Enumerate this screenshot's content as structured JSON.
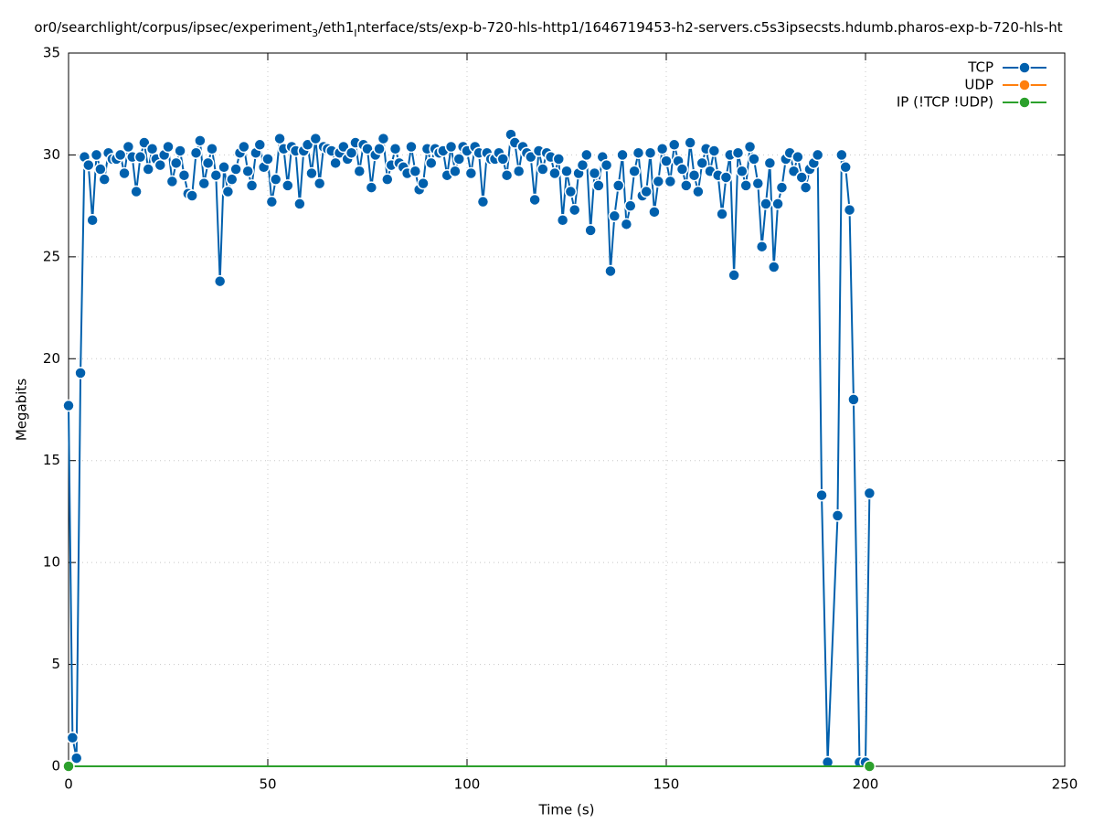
{
  "chart_data": {
    "type": "line",
    "title": [
      "or0/searchlight/corpus/ipsec/experiment",
      "3",
      "/eth1",
      "I",
      "nterface/sts/exp-b-720-hls-http1/1646719453-h2-servers.c5s3ipsecsts.hdumb.pharos-exp-b-720-hls-ht"
    ],
    "x_label": "Time (s)",
    "y_label": "Megabits",
    "xlim": [
      0,
      250
    ],
    "xticks": [
      0,
      50,
      100,
      150,
      200,
      250
    ],
    "ylim": [
      0,
      35
    ],
    "yticks": [
      0,
      5,
      10,
      15,
      20,
      25,
      30,
      35
    ],
    "grid": true,
    "legend": "top-right",
    "series": [
      {
        "name": "TCP",
        "color": "#0060ad",
        "x": [
          0,
          1,
          2,
          3,
          4,
          5,
          6,
          7,
          8,
          9,
          10,
          11,
          12,
          13,
          14,
          15,
          16,
          17,
          18,
          19,
          20,
          21,
          22,
          23,
          24,
          25,
          26,
          27,
          28,
          29,
          30,
          31,
          32,
          33,
          34,
          35,
          36,
          37,
          38,
          39,
          40,
          41,
          42,
          43,
          44,
          45,
          46,
          47,
          48,
          49,
          50,
          51,
          52,
          53,
          54,
          55,
          56,
          57,
          58,
          59,
          60,
          61,
          62,
          63,
          64,
          65,
          66,
          67,
          68,
          69,
          70,
          71,
          72,
          73,
          74,
          75,
          76,
          77,
          78,
          79,
          80,
          81,
          82,
          83,
          84,
          85,
          86,
          87,
          88,
          89,
          90,
          91,
          92,
          93,
          94,
          95,
          96,
          97,
          98,
          99,
          100,
          101,
          102,
          103,
          104,
          105,
          106,
          107,
          108,
          109,
          110,
          111,
          112,
          113,
          114,
          115,
          116,
          117,
          118,
          119,
          120,
          121,
          122,
          123,
          124,
          125,
          126,
          127,
          128,
          129,
          130,
          131,
          132,
          133,
          134,
          135,
          136,
          137,
          138,
          139,
          140,
          141,
          142,
          143,
          144,
          145,
          146,
          147,
          148,
          149,
          150,
          151,
          152,
          153,
          154,
          155,
          156,
          157,
          158,
          159,
          160,
          161,
          162,
          163,
          164,
          165,
          166,
          167,
          168,
          169,
          170,
          171,
          172,
          173,
          174,
          175,
          176,
          177,
          178,
          179,
          180,
          181,
          182,
          183,
          184,
          185,
          186,
          187,
          188,
          189,
          190.5,
          193,
          194,
          195,
          196,
          197,
          198.5,
          200,
          201
        ],
        "values": [
          17.7,
          1.4,
          0.4,
          19.3,
          29.9,
          29.5,
          26.8,
          30.0,
          29.3,
          28.8,
          30.1,
          29.8,
          29.8,
          30.0,
          29.1,
          30.4,
          29.9,
          28.2,
          29.9,
          30.6,
          29.3,
          30.3,
          29.8,
          29.5,
          30.0,
          30.4,
          28.7,
          29.6,
          30.2,
          29.0,
          28.1,
          28.0,
          30.1,
          30.7,
          28.6,
          29.6,
          30.3,
          29.0,
          23.8,
          29.4,
          28.2,
          28.8,
          29.3,
          30.1,
          30.4,
          29.2,
          28.5,
          30.1,
          30.5,
          29.4,
          29.8,
          27.7,
          28.8,
          30.8,
          30.3,
          28.5,
          30.4,
          30.2,
          27.6,
          30.2,
          30.5,
          29.1,
          30.8,
          28.6,
          30.4,
          30.3,
          30.2,
          29.6,
          30.1,
          30.4,
          29.8,
          30.1,
          30.6,
          29.2,
          30.5,
          30.3,
          28.4,
          30.0,
          30.3,
          30.8,
          28.8,
          29.5,
          30.3,
          29.6,
          29.4,
          29.1,
          30.4,
          29.2,
          28.3,
          28.6,
          30.3,
          29.6,
          30.3,
          30.1,
          30.2,
          29.0,
          30.4,
          29.2,
          29.8,
          30.4,
          30.2,
          29.1,
          30.4,
          30.1,
          27.7,
          30.1,
          29.8,
          29.8,
          30.1,
          29.8,
          29.0,
          31.0,
          30.6,
          29.2,
          30.4,
          30.1,
          29.9,
          27.8,
          30.2,
          29.3,
          30.1,
          29.9,
          29.1,
          29.8,
          26.8,
          29.2,
          28.2,
          27.3,
          29.1,
          29.5,
          30.0,
          26.3,
          29.1,
          28.5,
          29.9,
          29.5,
          24.3,
          27.0,
          28.5,
          30.0,
          26.6,
          27.5,
          29.2,
          30.1,
          28.0,
          28.2,
          30.1,
          27.2,
          28.7,
          30.3,
          29.7,
          28.7,
          30.5,
          29.7,
          29.3,
          28.5,
          30.6,
          29.0,
          28.2,
          29.6,
          30.3,
          29.2,
          30.2,
          29.0,
          27.1,
          28.9,
          30.0,
          24.1,
          30.1,
          29.2,
          28.5,
          30.4,
          29.8,
          28.6,
          25.5,
          27.6,
          29.6,
          24.5,
          27.6,
          28.4,
          29.8,
          30.1,
          29.2,
          29.9,
          28.9,
          28.4,
          29.3,
          29.6,
          30.0,
          13.3,
          0.2,
          12.3,
          30.0,
          29.4,
          27.3,
          18.0,
          0.2,
          0.2,
          13.4
        ]
      },
      {
        "name": "UDP",
        "color": "#ff7f0e",
        "x": [],
        "values": []
      },
      {
        "name": "IP (!TCP  !UDP)",
        "color": "#2ca02c",
        "x": [
          0,
          201
        ],
        "values": [
          0,
          0
        ]
      }
    ]
  }
}
